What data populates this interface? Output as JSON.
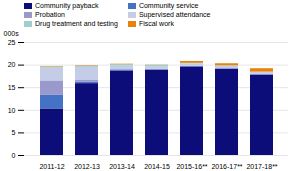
{
  "chart_data": {
    "type": "bar",
    "stacked": true,
    "ylabel": "000s",
    "categories": [
      "2011-12",
      "2012-13",
      "2013-14",
      "2014-15",
      "2015-16**",
      "2016-17**",
      "2017-18**"
    ],
    "series": [
      {
        "name": "Community payback",
        "color": "#0D0D7A",
        "values": [
          10.3,
          15.9,
          18.7,
          18.9,
          19.6,
          19.1,
          17.8
        ]
      },
      {
        "name": "Community service",
        "color": "#4472C4",
        "values": [
          3.0,
          0.3,
          0.1,
          0.05,
          0.05,
          0.05,
          0.05
        ]
      },
      {
        "name": "Probation",
        "color": "#9999CC",
        "values": [
          3.2,
          0.5,
          0.2,
          0.1,
          0.1,
          0.1,
          0.1
        ]
      },
      {
        "name": "Supervised attendance",
        "color": "#C5CCE8",
        "values": [
          2.8,
          2.8,
          0.8,
          0.6,
          0.5,
          0.5,
          0.4
        ]
      },
      {
        "name": "Drug treatment and testing",
        "color": "#9ECECE",
        "values": [
          0.3,
          0.3,
          0.3,
          0.3,
          0.15,
          0.1,
          0.1
        ]
      },
      {
        "name": "Fiscal work",
        "color": "#E8820A",
        "values": [
          0.1,
          0.1,
          0.1,
          0.05,
          0.4,
          0.45,
          0.75
        ]
      }
    ],
    "ylim": [
      0,
      25
    ],
    "yticks": [
      0,
      5,
      10,
      15,
      20,
      25
    ],
    "grid": true,
    "legend": "top"
  }
}
